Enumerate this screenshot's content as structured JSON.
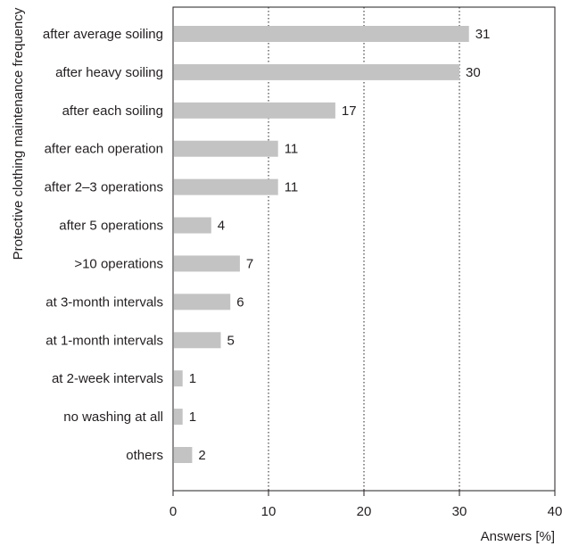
{
  "chart_data": {
    "type": "bar",
    "orientation": "horizontal",
    "categories": [
      "after average soiling",
      "after heavy soiling",
      "after each soiling",
      "after each operation",
      "after 2–3 operations",
      "after 5 operations",
      ">10 operations",
      "at 3-month intervals",
      "at 1-month intervals",
      "at 2-week intervals",
      "no washing at all",
      "others"
    ],
    "values": [
      31,
      30,
      17,
      11,
      11,
      4,
      7,
      6,
      5,
      1,
      1,
      2
    ],
    "data_labels": [
      "31",
      "30",
      "17",
      "11",
      "11",
      "4",
      "7",
      "6",
      "5",
      "1",
      "1",
      "2"
    ],
    "xlabel": "Answers [%]",
    "ylabel": "Protective clothing maintenance frequency",
    "xlim": [
      0,
      40
    ],
    "xticks": [
      0,
      10,
      20,
      30,
      40
    ],
    "xtick_labels": [
      "0",
      "10",
      "20",
      "30",
      "40"
    ],
    "grid": "vertical dotted",
    "bar_color": "#c3c3c3",
    "legend": "none"
  }
}
